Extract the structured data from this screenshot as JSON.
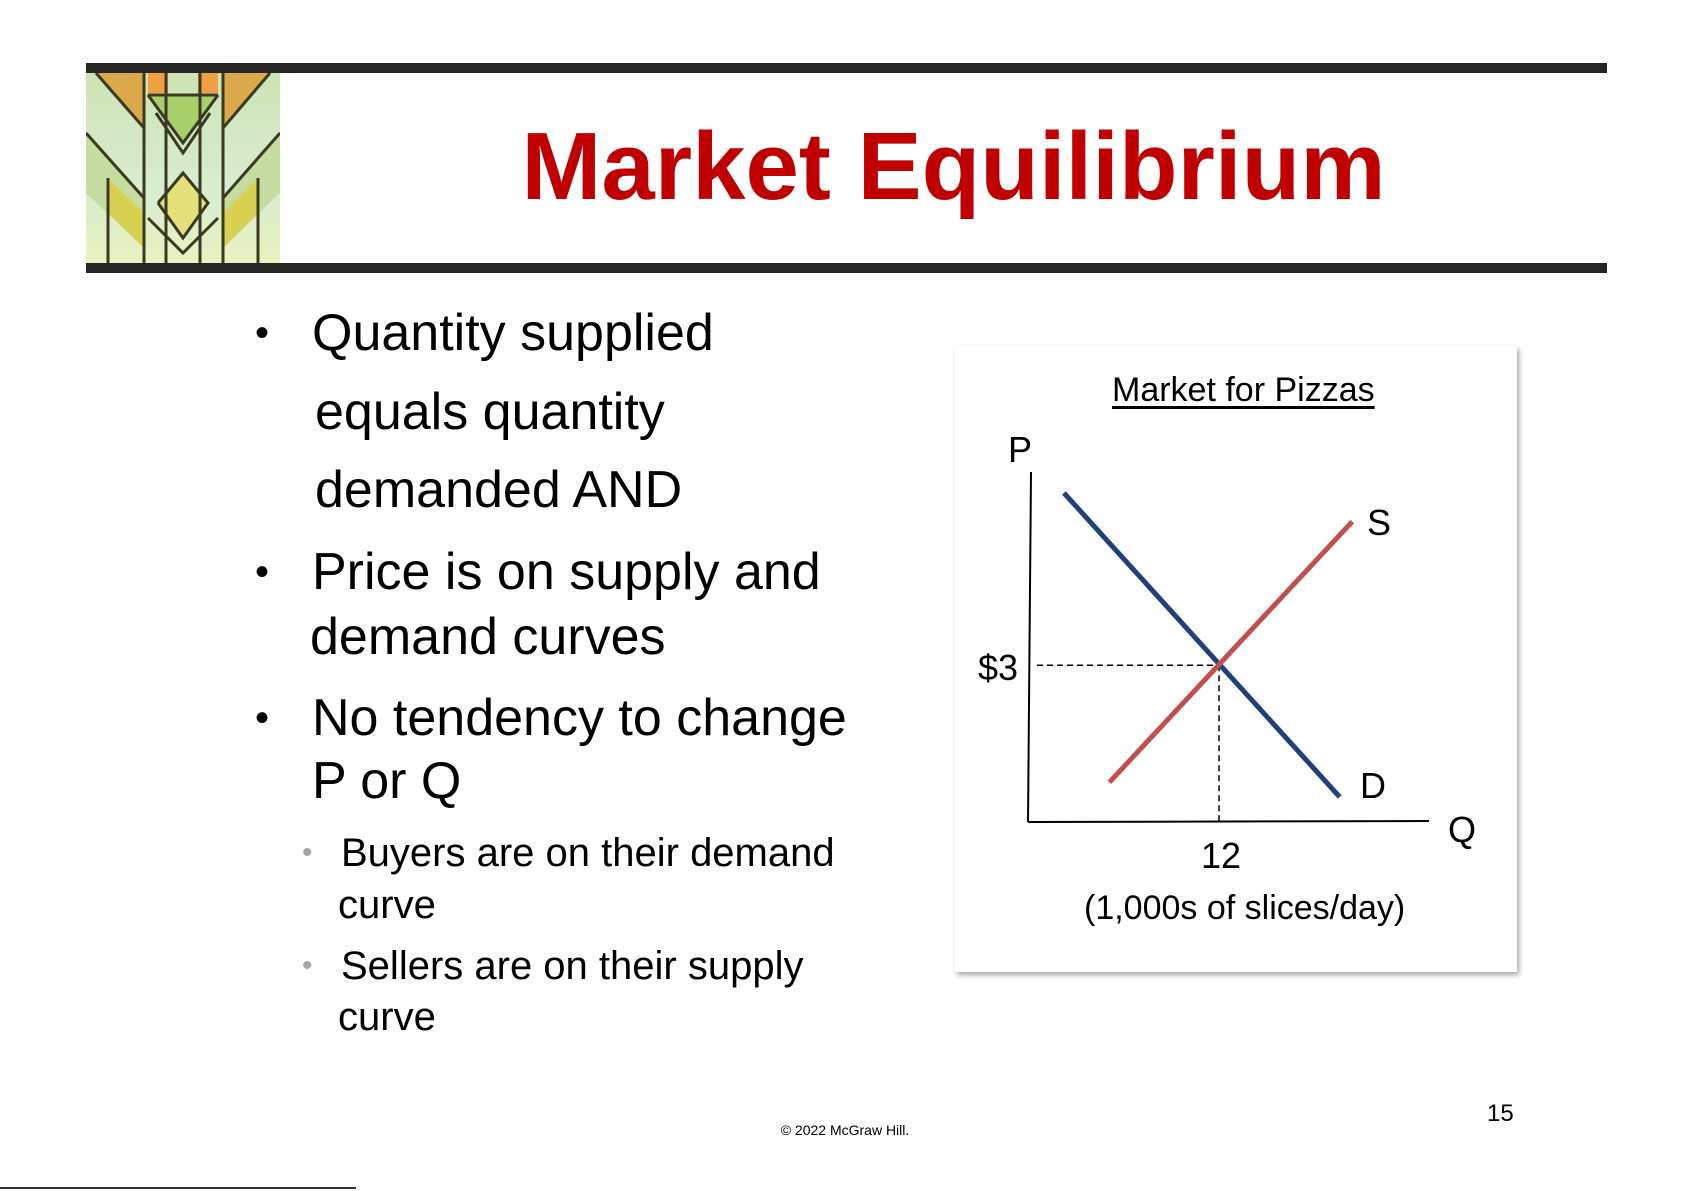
{
  "slide": {
    "title": "Market Equilibrium",
    "bullets": [
      {
        "lines": [
          "Quantity supplied",
          "equals quantity",
          "demanded AND"
        ]
      },
      {
        "lines": [
          "Price is on supply and",
          "demand curves"
        ]
      },
      {
        "lines": [
          "No tendency to change",
          "P or Q"
        ],
        "sub": [
          {
            "lines": [
              "Buyers are on their demand",
              "curve"
            ]
          },
          {
            "lines": [
              "Sellers are on their supply",
              "curve"
            ]
          }
        ]
      }
    ],
    "bullet_glyph": "•",
    "footer": "© 2022 McGraw Hill.",
    "page_number": "15",
    "title_color": "#c00000",
    "decor_image": "stained-glass-icon"
  },
  "chart_data": {
    "type": "line",
    "title": "Market for Pizzas",
    "ylabel": "P",
    "xlabel": "Q",
    "x_units": "(1,000s of slices/day)",
    "xlim": [
      0,
      25.4
    ],
    "ylim": [
      0,
      6.7
    ],
    "grid": false,
    "series": [
      {
        "name": "D",
        "color": "#1f3f7f",
        "points": [
          [
            2.1,
            6.3
          ],
          [
            19.7,
            0.48
          ]
        ]
      },
      {
        "name": "S",
        "color": "#c0504d",
        "points": [
          [
            5.0,
            0.76
          ],
          [
            20.5,
            5.75
          ]
        ]
      }
    ],
    "equilibrium": {
      "quantity": 12,
      "price": 3,
      "quantity_label": "12",
      "price_label": "$3"
    }
  }
}
